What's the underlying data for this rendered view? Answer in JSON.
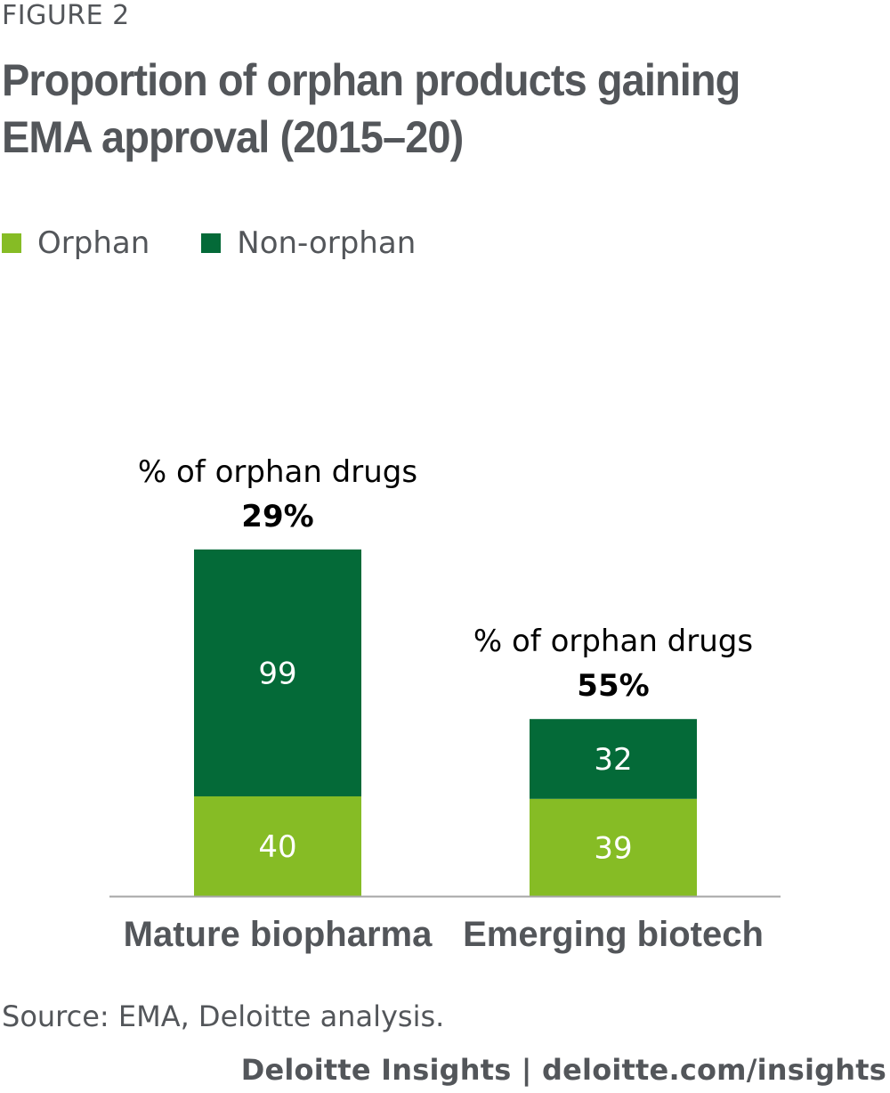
{
  "header": {
    "figure_label": "FIGURE 2",
    "title": "Proportion of orphan products gaining EMA approval (2015–20)"
  },
  "legend": {
    "items": [
      {
        "label": "Orphan",
        "color": "#86bc25"
      },
      {
        "label": "Non-orphan",
        "color": "#046a38"
      }
    ]
  },
  "chart_data": {
    "type": "bar",
    "stacked": true,
    "categories": [
      "Mature biopharma",
      "Emerging biotech"
    ],
    "series": [
      {
        "name": "Orphan",
        "color": "#86bc25",
        "values": [
          40,
          39
        ]
      },
      {
        "name": "Non-orphan",
        "color": "#046a38",
        "values": [
          99,
          32
        ]
      }
    ],
    "annotations": [
      {
        "category": "Mature biopharma",
        "label": "% of orphan drugs",
        "value": "29%"
      },
      {
        "category": "Emerging biotech",
        "label": "% of orphan drugs",
        "value": "55%"
      }
    ],
    "ylim": [
      0,
      139
    ],
    "grid": false,
    "legend_position": "top-left"
  },
  "source": "Source: EMA, Deloitte analysis.",
  "footer": "Deloitte Insights | deloitte.com/insights"
}
